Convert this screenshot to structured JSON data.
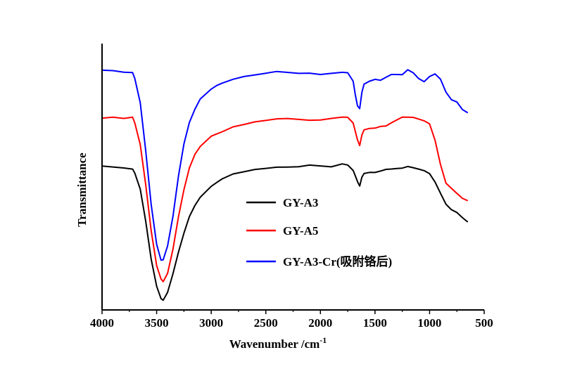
{
  "chart_data": {
    "type": "line",
    "xlabel": "Wavenumber /cm",
    "xlabel_superscript": "-1",
    "ylabel": "Transmittance",
    "xlim": [
      4000,
      500
    ],
    "ylim": [
      0,
      1
    ],
    "x_ticks": [
      4000,
      3500,
      3000,
      2500,
      2000,
      1500,
      1000,
      500
    ],
    "x_tick_labels": [
      "4000",
      "3500",
      "3000",
      "2500",
      "2000",
      "1500",
      "1000",
      "500"
    ],
    "grid": false,
    "legend_position": "center-right",
    "series": [
      {
        "name": "GY-A3",
        "color": "#000000",
        "x": [
          4000,
          3900,
          3800,
          3720,
          3700,
          3650,
          3600,
          3550,
          3500,
          3460,
          3440,
          3400,
          3350,
          3300,
          3250,
          3200,
          3150,
          3100,
          3050,
          3000,
          2950,
          2900,
          2800,
          2700,
          2600,
          2500,
          2400,
          2300,
          2200,
          2100,
          2000,
          1900,
          1800,
          1750,
          1700,
          1680,
          1660,
          1640,
          1620,
          1600,
          1550,
          1500,
          1450,
          1400,
          1350,
          1300,
          1250,
          1200,
          1150,
          1100,
          1050,
          1000,
          950,
          900,
          850,
          800,
          750,
          700,
          650
        ],
        "y": [
          0.54,
          0.535,
          0.53,
          0.525,
          0.51,
          0.45,
          0.33,
          0.19,
          0.09,
          0.045,
          0.04,
          0.07,
          0.14,
          0.22,
          0.29,
          0.35,
          0.39,
          0.42,
          0.44,
          0.46,
          0.475,
          0.49,
          0.51,
          0.52,
          0.53,
          0.535,
          0.54,
          0.54,
          0.54,
          0.545,
          0.54,
          0.535,
          0.545,
          0.54,
          0.52,
          0.5,
          0.48,
          0.465,
          0.5,
          0.515,
          0.52,
          0.52,
          0.525,
          0.53,
          0.53,
          0.53,
          0.53,
          0.535,
          0.53,
          0.525,
          0.52,
          0.51,
          0.48,
          0.44,
          0.4,
          0.38,
          0.37,
          0.35,
          0.33
        ]
      },
      {
        "name": "GY-A5",
        "color": "#ff0000",
        "x": [
          4000,
          3900,
          3800,
          3720,
          3700,
          3650,
          3600,
          3550,
          3500,
          3460,
          3440,
          3400,
          3350,
          3300,
          3250,
          3200,
          3150,
          3100,
          3050,
          3000,
          2950,
          2900,
          2800,
          2700,
          2600,
          2500,
          2400,
          2300,
          2200,
          2100,
          2000,
          1900,
          1800,
          1750,
          1700,
          1680,
          1660,
          1640,
          1620,
          1600,
          1550,
          1500,
          1450,
          1400,
          1350,
          1300,
          1250,
          1200,
          1150,
          1100,
          1050,
          1000,
          950,
          900,
          850,
          800,
          750,
          700,
          650
        ],
        "y": [
          0.72,
          0.72,
          0.715,
          0.72,
          0.7,
          0.62,
          0.47,
          0.3,
          0.17,
          0.12,
          0.11,
          0.14,
          0.23,
          0.35,
          0.45,
          0.53,
          0.58,
          0.61,
          0.63,
          0.65,
          0.66,
          0.67,
          0.69,
          0.7,
          0.71,
          0.715,
          0.72,
          0.72,
          0.715,
          0.71,
          0.71,
          0.715,
          0.72,
          0.72,
          0.7,
          0.67,
          0.64,
          0.62,
          0.66,
          0.68,
          0.685,
          0.685,
          0.69,
          0.69,
          0.7,
          0.71,
          0.72,
          0.72,
          0.72,
          0.715,
          0.71,
          0.7,
          0.64,
          0.55,
          0.48,
          0.46,
          0.44,
          0.42,
          0.41
        ]
      },
      {
        "name": "GY-A3-Cr(吸附铬后)",
        "color": "#0000ff",
        "x": [
          4000,
          3900,
          3800,
          3720,
          3700,
          3650,
          3600,
          3550,
          3500,
          3460,
          3440,
          3400,
          3350,
          3300,
          3250,
          3200,
          3150,
          3100,
          3050,
          3000,
          2950,
          2900,
          2800,
          2700,
          2600,
          2500,
          2400,
          2300,
          2200,
          2100,
          2000,
          1900,
          1800,
          1750,
          1700,
          1680,
          1660,
          1640,
          1620,
          1600,
          1550,
          1500,
          1450,
          1400,
          1350,
          1300,
          1250,
          1200,
          1150,
          1100,
          1050,
          1000,
          950,
          900,
          850,
          800,
          750,
          700,
          650
        ],
        "y": [
          0.9,
          0.895,
          0.89,
          0.89,
          0.87,
          0.78,
          0.6,
          0.4,
          0.25,
          0.19,
          0.19,
          0.24,
          0.35,
          0.5,
          0.62,
          0.7,
          0.75,
          0.79,
          0.81,
          0.83,
          0.845,
          0.855,
          0.87,
          0.88,
          0.885,
          0.89,
          0.895,
          0.89,
          0.885,
          0.885,
          0.88,
          0.885,
          0.89,
          0.89,
          0.86,
          0.81,
          0.77,
          0.76,
          0.82,
          0.85,
          0.86,
          0.865,
          0.86,
          0.87,
          0.88,
          0.88,
          0.88,
          0.9,
          0.89,
          0.87,
          0.86,
          0.88,
          0.89,
          0.87,
          0.82,
          0.79,
          0.78,
          0.75,
          0.74
        ]
      }
    ]
  }
}
